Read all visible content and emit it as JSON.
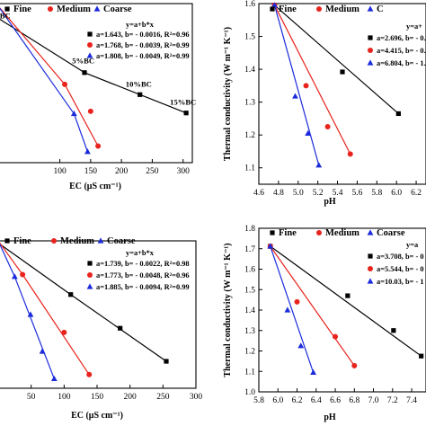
{
  "colors": {
    "Fine": "#000000",
    "Medium": "#e8231d",
    "Coarse": "#1b2bdb"
  },
  "chart_data": [
    {
      "type": "scatter",
      "panel": "top-left",
      "xlabel": "EC (μS cm⁻¹)",
      "ylabel": "",
      "xlim": [
        0,
        315
      ],
      "ylim": [
        1.05,
        1.7
      ],
      "xticks": [
        "100",
        "150",
        "200",
        "250",
        "300"
      ],
      "yticks": [],
      "legend": [
        "Fine",
        "Medium",
        "Coarse"
      ],
      "fit_title": "y=a+b*x",
      "series": [
        {
          "name": "Fine",
          "marker": "square",
          "color": "#000000",
          "x": [
            140,
            230,
            305
          ],
          "y": [
            1.418,
            1.328,
            1.253
          ],
          "fit": {
            "a": 1.643,
            "b": -0.0016,
            "label": "a=1.643, b= - 0.0016, R²=0.96"
          }
        },
        {
          "name": "Medium",
          "marker": "circle",
          "color": "#e8231d",
          "x": [
            108,
            150,
            162
          ],
          "y": [
            1.37,
            1.26,
            1.118
          ],
          "fit": {
            "a": 1.768,
            "b": -0.0039,
            "label": "a=1.768, b= - 0.0039, R²=0.99"
          }
        },
        {
          "name": "Coarse",
          "marker": "triangle",
          "color": "#1b2bdb",
          "x": [
            123,
            145
          ],
          "y": [
            1.25,
            1.095
          ],
          "fit": {
            "a": 1.808,
            "b": -0.0049,
            "label": "a=1.808, b= - 0.0049, R²=0.99"
          }
        }
      ],
      "annotations": [
        {
          "text": "%BC",
          "x": 5,
          "y": 1.64
        },
        {
          "text": "5%BC",
          "x": 138,
          "y": 1.455
        },
        {
          "text": "10%BC",
          "x": 228,
          "y": 1.36
        },
        {
          "text": "15%BC",
          "x": 300,
          "y": 1.287
        }
      ]
    },
    {
      "type": "scatter",
      "panel": "top-right",
      "xlabel": "pH",
      "ylabel": "Thermal conductivity (W m⁻¹ K⁻¹)",
      "xlim": [
        4.6,
        6.3
      ],
      "ylim": [
        1.05,
        1.6
      ],
      "xticks": [
        "4.6",
        "4.8",
        "5.0",
        "5.2",
        "5.4",
        "5.6",
        "5.8",
        "6.0",
        "6.2"
      ],
      "yticks": [
        "1.1",
        "1.2",
        "1.3",
        "1.4",
        "1.5",
        "1.6"
      ],
      "legend": [
        "Fine",
        "Medium",
        "C"
      ],
      "fit_title": "y=a+",
      "series": [
        {
          "name": "Fine",
          "marker": "square",
          "color": "#000000",
          "x": [
            4.76,
            5.45,
            6.02
          ],
          "y": [
            1.595,
            1.392,
            1.265
          ],
          "fit": {
            "a": 2.696,
            "b": null,
            "label": "a=2.696, b= - 0."
          }
        },
        {
          "name": "Medium",
          "marker": "circle",
          "color": "#e8231d",
          "x": [
            4.76,
            5.08,
            5.3,
            5.53
          ],
          "y": [
            1.595,
            1.35,
            1.225,
            1.142
          ],
          "fit": {
            "a": 4.415,
            "b": null,
            "label": "a=4.415, b= - 0."
          }
        },
        {
          "name": "Coarse",
          "marker": "triangle",
          "color": "#1b2bdb",
          "x": [
            4.76,
            4.97,
            5.1,
            5.21
          ],
          "y": [
            1.595,
            1.318,
            1.205,
            1.108
          ],
          "fit": {
            "a": 6.804,
            "b": null,
            "label": "a=6.804, b= - 1."
          }
        }
      ]
    },
    {
      "type": "scatter",
      "panel": "bottom-left",
      "xlabel": "EC (μS cm⁻¹)",
      "ylabel": "",
      "xlim": [
        0,
        300
      ],
      "ylim": [
        1.05,
        1.75
      ],
      "xticks": [
        "50",
        "100",
        "150",
        "200",
        "250",
        "300"
      ],
      "yticks": [],
      "legend": [
        "Fine",
        "Medium",
        "Coarse"
      ],
      "fit_title": "y=a+b*x",
      "series": [
        {
          "name": "Fine",
          "marker": "square",
          "color": "#000000",
          "x": [
            110,
            185,
            255
          ],
          "y": [
            1.495,
            1.335,
            1.178
          ],
          "fit": {
            "a": 1.739,
            "b": -0.0022,
            "label": "a=1.739, b= - 0.0022, R²=0.98"
          }
        },
        {
          "name": "Medium",
          "marker": "circle",
          "color": "#e8231d",
          "x": [
            37,
            100,
            138
          ],
          "y": [
            1.59,
            1.315,
            1.115
          ],
          "fit": {
            "a": 1.773,
            "b": -0.0048,
            "label": "a=1.773, b= - 0.0048, R²=0.96"
          }
        },
        {
          "name": "Coarse",
          "marker": "triangle",
          "color": "#1b2bdb",
          "x": [
            25,
            49,
            67,
            85
          ],
          "y": [
            1.58,
            1.4,
            1.225,
            1.095
          ],
          "fit": {
            "a": 1.885,
            "b": -0.0094,
            "label": "a=1.885, b= - 0.0094, R²=0.99"
          }
        }
      ]
    },
    {
      "type": "scatter",
      "panel": "bottom-right",
      "xlabel": "pH",
      "ylabel": "Thermal conductivity (W m⁻¹ K⁻¹)",
      "xlim": [
        5.8,
        7.55
      ],
      "ylim": [
        1.0,
        1.8
      ],
      "xticks": [
        "5.8",
        "6.0",
        "6.2",
        "6.4",
        "6.6",
        "6.8",
        "7.0",
        "7.2",
        "7.4"
      ],
      "yticks": [
        "1.0",
        "1.1",
        "1.2",
        "1.3",
        "1.4",
        "1.5",
        "1.6",
        "1.7",
        "1.8"
      ],
      "legend": [
        "Fine",
        "Medium",
        "Coarse"
      ],
      "fit_title": "y=a",
      "series": [
        {
          "name": "Fine",
          "marker": "square",
          "color": "#000000",
          "x": [
            5.92,
            6.73,
            7.21,
            7.5
          ],
          "y": [
            1.712,
            1.47,
            1.3,
            1.175
          ],
          "fit": {
            "a": 3.708,
            "b": null,
            "label": "a=3.708, b= - 0"
          }
        },
        {
          "name": "Medium",
          "marker": "circle",
          "color": "#e8231d",
          "x": [
            5.92,
            6.2,
            6.6,
            6.8
          ],
          "y": [
            1.712,
            1.44,
            1.27,
            1.128
          ],
          "fit": {
            "a": 5.544,
            "b": null,
            "label": "a=5.544, b= - 0"
          }
        },
        {
          "name": "Coarse",
          "marker": "triangle",
          "color": "#1b2bdb",
          "x": [
            5.92,
            6.1,
            6.24,
            6.37
          ],
          "y": [
            1.712,
            1.4,
            1.225,
            1.095
          ],
          "fit": {
            "a": 10.03,
            "b": null,
            "label": "a=10.03, b= - 1"
          }
        }
      ]
    }
  ]
}
